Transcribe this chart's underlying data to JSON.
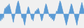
{
  "values": [
    -3,
    -5,
    -2,
    -4,
    -1,
    -3,
    2,
    4,
    3,
    5,
    4,
    6,
    5,
    7,
    5,
    3,
    1,
    -2,
    -4,
    -6,
    -3,
    -1,
    1,
    4,
    6,
    8,
    9,
    7,
    5,
    2,
    0,
    -3,
    -2,
    -4,
    -6,
    -8,
    -5,
    -2,
    1,
    3,
    5,
    4,
    2,
    0,
    -2,
    -4,
    -3,
    -5,
    -2,
    0,
    2,
    1,
    3,
    2,
    4,
    3,
    1,
    -1,
    -3,
    -5,
    -4,
    -2,
    0,
    3,
    5,
    7,
    6,
    4,
    2,
    0,
    -2,
    -1,
    -3,
    -2,
    -4,
    -3,
    -5,
    -4,
    -2,
    0,
    2,
    1,
    3,
    5,
    7,
    9,
    8,
    6,
    4,
    2,
    0,
    -2,
    -4,
    -6,
    -8,
    -6,
    -4,
    -2,
    1,
    3,
    5,
    7,
    6,
    4,
    2,
    0,
    -2,
    -4,
    -6,
    -8,
    -5,
    -3,
    -1,
    2,
    4,
    6,
    8,
    6,
    4,
    2
  ],
  "fill_color": "#5b9bd5",
  "line_color": "#5b9bd5",
  "background_color": "#f0f0f0",
  "alpha": 1.0
}
